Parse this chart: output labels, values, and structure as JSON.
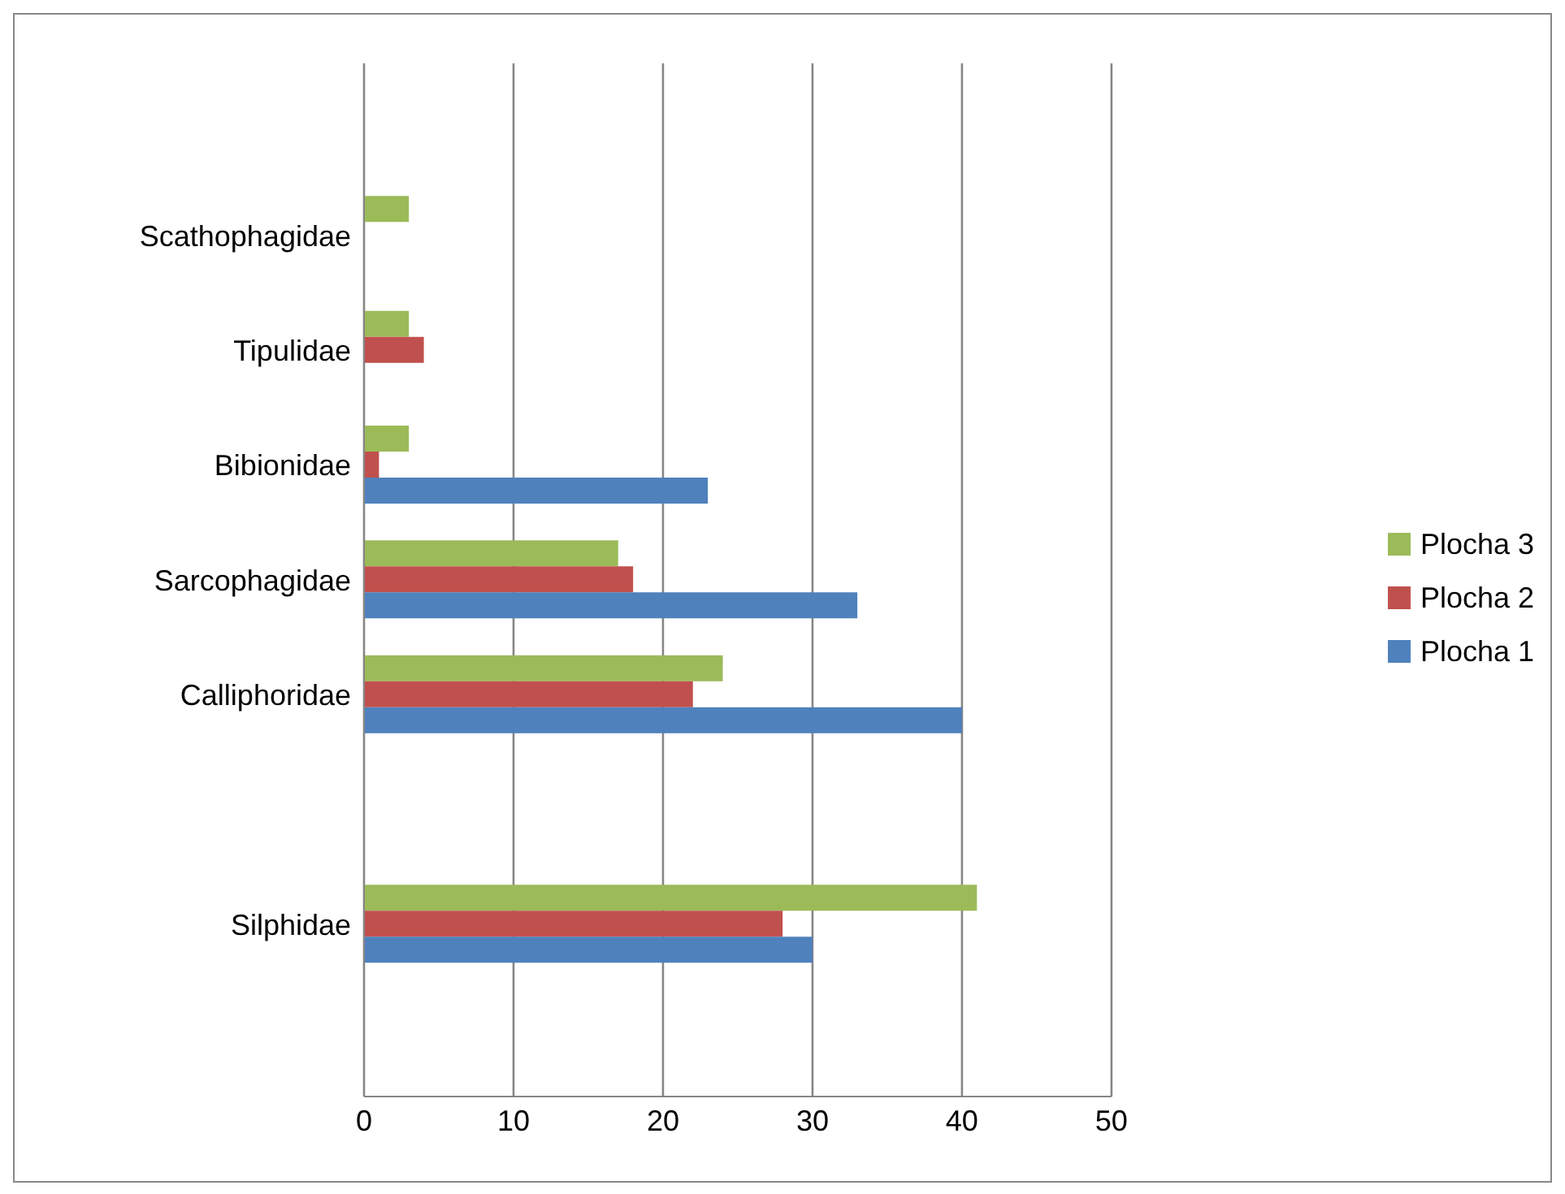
{
  "chart_data": {
    "type": "bar",
    "orientation": "horizontal",
    "categories": [
      null,
      "Scathophagidae",
      "Tipulidae",
      "Bibionidae",
      "Sarcophagidae",
      "Calliphoridae",
      null,
      "Silphidae",
      null
    ],
    "series": [
      {
        "name": "Plocha 1",
        "color": "#4f81bd",
        "values": [
          null,
          null,
          null,
          23,
          33,
          40,
          null,
          30,
          null
        ]
      },
      {
        "name": "Plocha 2",
        "color": "#c0504d",
        "values": [
          null,
          null,
          4,
          1,
          18,
          22,
          null,
          28,
          null
        ]
      },
      {
        "name": "Plocha 3",
        "color": "#9bbb59",
        "values": [
          null,
          3,
          3,
          3,
          17,
          24,
          null,
          41,
          null
        ]
      }
    ],
    "xlim": [
      0,
      50
    ],
    "xticks": [
      0,
      10,
      20,
      30,
      40,
      50
    ],
    "grid": "x",
    "legend": "right"
  }
}
